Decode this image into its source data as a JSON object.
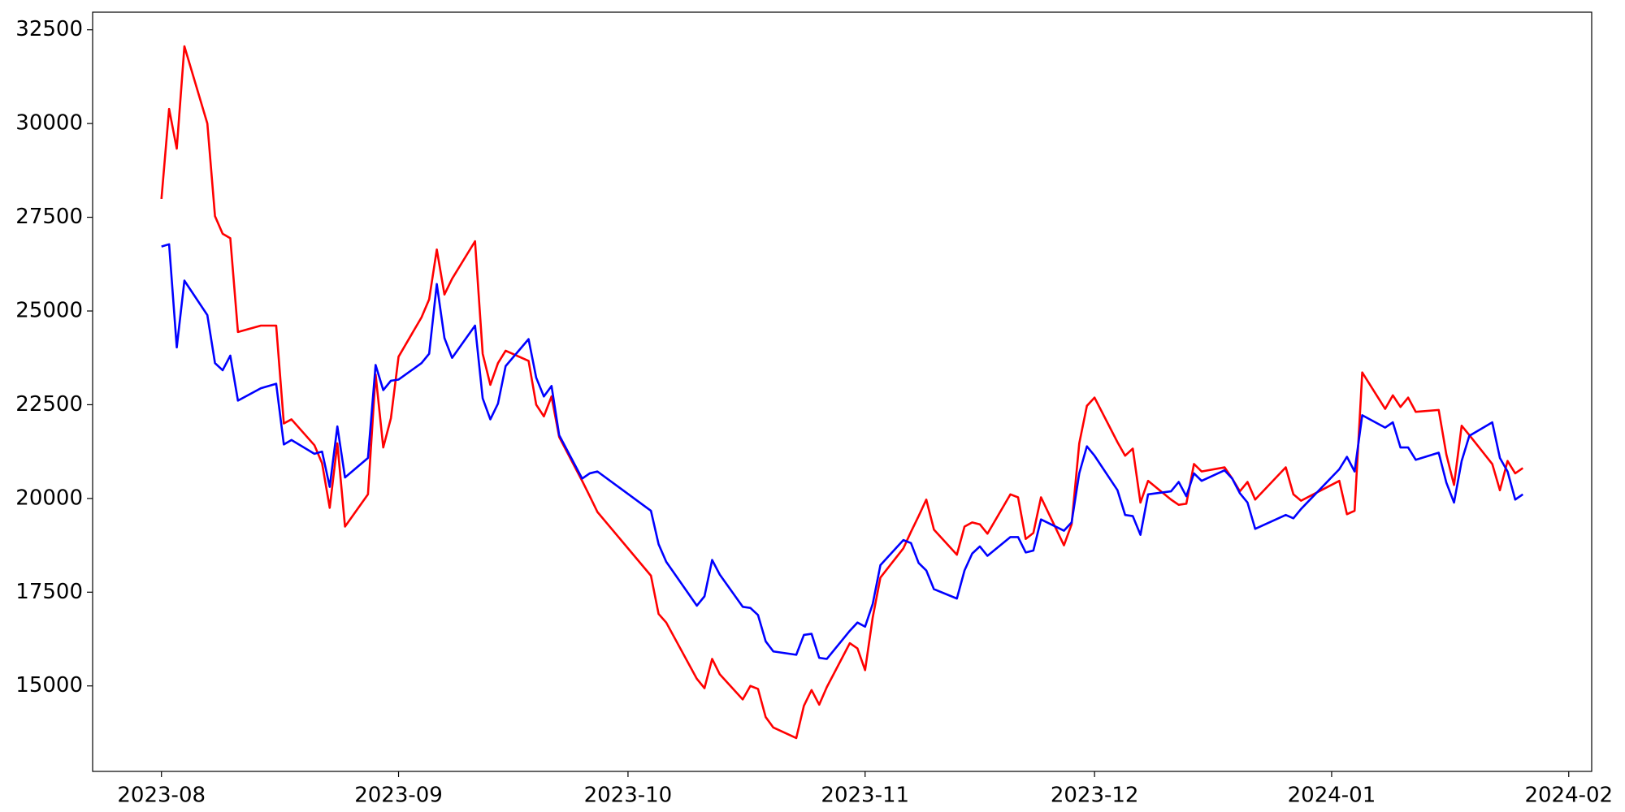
{
  "chart_data": {
    "type": "line",
    "x": [
      "2023-08-01",
      "2023-08-02",
      "2023-08-03",
      "2023-08-04",
      "2023-08-07",
      "2023-08-08",
      "2023-08-09",
      "2023-08-10",
      "2023-08-11",
      "2023-08-14",
      "2023-08-16",
      "2023-08-17",
      "2023-08-18",
      "2023-08-21",
      "2023-08-22",
      "2023-08-23",
      "2023-08-24",
      "2023-08-25",
      "2023-08-28",
      "2023-08-29",
      "2023-08-30",
      "2023-08-31",
      "2023-09-01",
      "2023-09-04",
      "2023-09-05",
      "2023-09-06",
      "2023-09-07",
      "2023-09-08",
      "2023-09-11",
      "2023-09-12",
      "2023-09-13",
      "2023-09-14",
      "2023-09-15",
      "2023-09-18",
      "2023-09-19",
      "2023-09-20",
      "2023-09-21",
      "2023-09-22",
      "2023-09-25",
      "2023-09-26",
      "2023-09-27",
      "2023-10-04",
      "2023-10-05",
      "2023-10-06",
      "2023-10-10",
      "2023-10-11",
      "2023-10-12",
      "2023-10-13",
      "2023-10-16",
      "2023-10-17",
      "2023-10-18",
      "2023-10-19",
      "2023-10-20",
      "2023-10-23",
      "2023-10-24",
      "2023-10-25",
      "2023-10-26",
      "2023-10-27",
      "2023-10-30",
      "2023-10-31",
      "2023-11-01",
      "2023-11-02",
      "2023-11-03",
      "2023-11-06",
      "2023-11-07",
      "2023-11-08",
      "2023-11-09",
      "2023-11-10",
      "2023-11-13",
      "2023-11-14",
      "2023-11-15",
      "2023-11-16",
      "2023-11-17",
      "2023-11-20",
      "2023-11-21",
      "2023-11-22",
      "2023-11-23",
      "2023-11-24",
      "2023-11-27",
      "2023-11-28",
      "2023-11-29",
      "2023-11-30",
      "2023-12-01",
      "2023-12-04",
      "2023-12-05",
      "2023-12-06",
      "2023-12-07",
      "2023-12-08",
      "2023-12-11",
      "2023-12-12",
      "2023-12-13",
      "2023-12-14",
      "2023-12-15",
      "2023-12-18",
      "2023-12-19",
      "2023-12-20",
      "2023-12-21",
      "2023-12-22",
      "2023-12-26",
      "2023-12-27",
      "2023-12-28",
      "2024-01-02",
      "2024-01-03",
      "2024-01-04",
      "2024-01-05",
      "2024-01-08",
      "2024-01-09",
      "2024-01-10",
      "2024-01-11",
      "2024-01-12",
      "2024-01-15",
      "2024-01-16",
      "2024-01-17",
      "2024-01-18",
      "2024-01-19",
      "2024-01-22",
      "2024-01-23",
      "2024-01-24",
      "2024-01-25",
      "2024-01-26"
    ],
    "series": [
      {
        "color": "#ff0000",
        "values": [
          27990,
          30390,
          29330,
          32060,
          30000,
          27530,
          27060,
          26940,
          24440,
          24610,
          24610,
          22000,
          22110,
          21420,
          20940,
          19750,
          21470,
          19250,
          20110,
          23310,
          21360,
          22140,
          23780,
          24830,
          25310,
          26640,
          25440,
          25860,
          26860,
          23860,
          23030,
          23610,
          23940,
          23670,
          22500,
          22190,
          22720,
          21640,
          20470,
          20060,
          19640,
          17940,
          16920,
          16690,
          15190,
          14940,
          15720,
          15310,
          14640,
          15000,
          14920,
          14170,
          13890,
          13610,
          14470,
          14890,
          14500,
          14970,
          16140,
          16000,
          15420,
          16830,
          17890,
          18670,
          19110,
          19530,
          19970,
          19170,
          18500,
          19250,
          19360,
          19310,
          19060,
          20110,
          20030,
          18920,
          19080,
          20030,
          18750,
          19310,
          21470,
          22470,
          22690,
          21500,
          21140,
          21330,
          19890,
          20470,
          19970,
          19830,
          19860,
          20920,
          20720,
          20830,
          20530,
          20190,
          20440,
          19970,
          20830,
          20110,
          19940,
          20470,
          19580,
          19670,
          23360,
          22390,
          22750,
          22440,
          22690,
          22310,
          22360,
          21170,
          20360,
          21940,
          21690,
          20920,
          20220,
          21000,
          20670,
          20810
        ]
      },
      {
        "color": "#0000ff",
        "values": [
          26720,
          26780,
          24030,
          25810,
          24890,
          23610,
          23420,
          23810,
          22610,
          22940,
          23060,
          21440,
          21560,
          21190,
          21250,
          20310,
          21920,
          20560,
          21080,
          23560,
          22890,
          23140,
          23170,
          23610,
          23860,
          25720,
          24280,
          23750,
          24610,
          22670,
          22110,
          22530,
          23530,
          24250,
          23220,
          22720,
          23000,
          21690,
          20530,
          20670,
          20720,
          19670,
          18780,
          18310,
          17140,
          17390,
          18360,
          17970,
          17110,
          17080,
          16890,
          16190,
          15920,
          15830,
          16360,
          16390,
          15750,
          15720,
          16470,
          16690,
          16580,
          17190,
          18220,
          18890,
          18810,
          18280,
          18080,
          17580,
          17330,
          18080,
          18530,
          18720,
          18470,
          18970,
          18970,
          18560,
          18610,
          19440,
          19140,
          19360,
          20670,
          21390,
          21140,
          20220,
          19560,
          19530,
          19030,
          20110,
          20190,
          20440,
          20060,
          20670,
          20470,
          20750,
          20530,
          20140,
          19890,
          19190,
          19560,
          19470,
          19720,
          20780,
          21110,
          20720,
          22220,
          21890,
          22030,
          21360,
          21360,
          21030,
          21220,
          20420,
          19890,
          21000,
          21670,
          22030,
          21080,
          20720,
          19970,
          20110
        ]
      }
    ],
    "xlim": [
      "2023-07-23",
      "2024-02-04"
    ],
    "xticks": [
      {
        "value": "2023-08-01",
        "label": "2023-08"
      },
      {
        "value": "2023-09-01",
        "label": "2023-09"
      },
      {
        "value": "2023-10-01",
        "label": "2023-10"
      },
      {
        "value": "2023-11-01",
        "label": "2023-11"
      },
      {
        "value": "2023-12-01",
        "label": "2023-12"
      },
      {
        "value": "2024-01-01",
        "label": "2024-01"
      },
      {
        "value": "2024-02-01",
        "label": "2024-02"
      }
    ],
    "ylim": [
      12720,
      32970
    ],
    "yticks": [
      15000,
      17500,
      20000,
      22500,
      25000,
      27500,
      30000,
      32500
    ],
    "grid": false
  }
}
